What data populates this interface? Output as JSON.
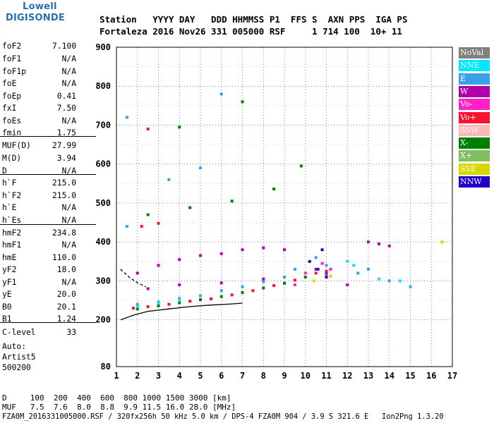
{
  "logo": {
    "line1": "Lowell",
    "line2": "DIGISONDE"
  },
  "header": {
    "row1": "Station   YYYY DAY   DDD HHMMSS P1  FFS S  AXN PPS  IGA PS",
    "row2": "Fortaleza 2016 Nov26 331 005000 RSF     1 714 100  10+ 11"
  },
  "params": [
    {
      "name": "foF2",
      "value": "7.100"
    },
    {
      "name": "foF1",
      "value": "N/A"
    },
    {
      "name": "foF1p",
      "value": "N/A"
    },
    {
      "name": "foE",
      "value": "N/A"
    },
    {
      "name": "foEp",
      "value": "0.41"
    },
    {
      "name": "fxI",
      "value": "7.50"
    },
    {
      "name": "foEs",
      "value": "N/A"
    },
    {
      "name": "fmin",
      "value": "1.75"
    },
    {
      "name": "MUF(D)",
      "value": "27.99"
    },
    {
      "name": "M(D)",
      "value": "3.94"
    },
    {
      "name": "D",
      "value": "N/A"
    },
    {
      "name": "h`F",
      "value": "215.0"
    },
    {
      "name": "h`F2",
      "value": "215.0"
    },
    {
      "name": "h`E",
      "value": "N/A"
    },
    {
      "name": "h`Es",
      "value": "N/A"
    },
    {
      "name": "hmF2",
      "value": "234.8"
    },
    {
      "name": "hmF1",
      "value": "N/A"
    },
    {
      "name": "hmE",
      "value": "110.0"
    },
    {
      "name": "yF2",
      "value": "18.0"
    },
    {
      "name": "yF1",
      "value": "N/A"
    },
    {
      "name": "yE",
      "value": "20.0"
    },
    {
      "name": "B0",
      "value": "20.1"
    },
    {
      "name": "B1",
      "value": "1.24"
    },
    {
      "name": "C-level",
      "value": "33"
    }
  ],
  "autoscale": {
    "line1": "Auto:",
    "line2": "Artist5",
    "line3": "500200"
  },
  "legend": [
    {
      "label": "NoVal",
      "bg": "#808080",
      "fg": "#ffffff"
    },
    {
      "label": "NNE",
      "bg": "#00e8ff",
      "fg": "#ffffff"
    },
    {
      "label": "E",
      "bg": "#3aa0e8",
      "fg": "#ffffff"
    },
    {
      "label": "W",
      "bg": "#b000a8",
      "fg": "#ffffff"
    },
    {
      "label": "Vo-",
      "bg": "#ff20c8",
      "fg": "#ffffff"
    },
    {
      "label": "Vo+",
      "bg": "#ff1030",
      "fg": "#ffffff"
    },
    {
      "label": "SSW",
      "bg": "#ffb8b8",
      "fg": "#ffffff"
    },
    {
      "label": "X-",
      "bg": "#008000",
      "fg": "#ffffff"
    },
    {
      "label": "X+",
      "bg": "#80c060",
      "fg": "#ffffff"
    },
    {
      "label": "SSE",
      "bg": "#d8d800",
      "fg": "#ffffff"
    },
    {
      "label": "NNW",
      "bg": "#2000c8",
      "fg": "#ffffff"
    }
  ],
  "footer": {
    "line1": "D     100  200  400  600  800 1000 1500 3000 [km]",
    "line2": "MUF   7.5  7.6  8.0  8.8  9.9 11.5 16.0 28.0 [MHz]",
    "line3": "FZA0M_2016331005000.RSF / 320fx256h 50 kHz 5.0 km / DPS-4 FZA0M 904 / 3.9 S 321.6 E   Ion2Png 1.3.20"
  },
  "chart_data": {
    "type": "scatter",
    "xlim": [
      1,
      17
    ],
    "ylim": [
      80,
      900
    ],
    "x_ticks": [
      1,
      2,
      3,
      4,
      5,
      6,
      7,
      8,
      9,
      10,
      11,
      12,
      13,
      14,
      15,
      16,
      17
    ],
    "y_ticks": [
      80,
      200,
      300,
      400,
      500,
      600,
      700,
      800,
      900
    ],
    "grid": true,
    "series": [
      {
        "name": "X-",
        "color": "#008000",
        "points": [
          [
            2.0,
            228
          ],
          [
            3.0,
            236
          ],
          [
            4.0,
            244
          ],
          [
            5.0,
            252
          ],
          [
            6.0,
            260
          ],
          [
            7.0,
            270
          ],
          [
            8.0,
            282
          ],
          [
            9.0,
            294
          ],
          [
            10.0,
            310
          ],
          [
            11.0,
            318
          ],
          [
            2.5,
            470
          ],
          [
            4.5,
            488
          ],
          [
            6.5,
            505
          ],
          [
            8.5,
            536
          ],
          [
            9.8,
            595
          ],
          [
            4.0,
            695
          ],
          [
            7.0,
            760
          ]
        ]
      },
      {
        "name": "Vo+",
        "color": "#ff1030",
        "points": [
          [
            1.8,
            230
          ],
          [
            2.5,
            234
          ],
          [
            3.5,
            240
          ],
          [
            4.5,
            248
          ],
          [
            5.5,
            254
          ],
          [
            6.5,
            264
          ],
          [
            7.5,
            275
          ],
          [
            8.5,
            288
          ],
          [
            9.5,
            302
          ],
          [
            10.5,
            320
          ],
          [
            11.0,
            325
          ],
          [
            2.2,
            440
          ],
          [
            3.0,
            448
          ],
          [
            2.5,
            690
          ]
        ]
      },
      {
        "name": "W",
        "color": "#b000a8",
        "points": [
          [
            2.0,
            320
          ],
          [
            3.0,
            340
          ],
          [
            4.0,
            355
          ],
          [
            5.0,
            365
          ],
          [
            6.0,
            370
          ],
          [
            7.0,
            380
          ],
          [
            8.0,
            385
          ],
          [
            9.0,
            380
          ],
          [
            2.5,
            280
          ],
          [
            4.0,
            290
          ],
          [
            6.0,
            295
          ],
          [
            8.0,
            305
          ],
          [
            10.5,
            330
          ],
          [
            11.0,
            320
          ],
          [
            12.0,
            290
          ],
          [
            13.0,
            400
          ],
          [
            13.5,
            395
          ],
          [
            14.0,
            390
          ]
        ]
      },
      {
        "name": "E",
        "color": "#3aa0e8",
        "points": [
          [
            2.0,
            240
          ],
          [
            3.0,
            246
          ],
          [
            4.0,
            255
          ],
          [
            5.0,
            262
          ],
          [
            6.0,
            275
          ],
          [
            7.0,
            285
          ],
          [
            8.0,
            298
          ],
          [
            9.0,
            310
          ],
          [
            9.5,
            330
          ],
          [
            10.5,
            360
          ],
          [
            11.0,
            340
          ],
          [
            12.5,
            320
          ],
          [
            13.0,
            330
          ],
          [
            14.0,
            300
          ],
          [
            15.0,
            285
          ],
          [
            1.5,
            440
          ],
          [
            1.5,
            720
          ],
          [
            3.5,
            560
          ],
          [
            5.0,
            590
          ],
          [
            6.0,
            780
          ]
        ]
      },
      {
        "name": "NNE",
        "color": "#00e8ff",
        "points": [
          [
            2.0,
            234
          ],
          [
            3.0,
            243
          ],
          [
            4.0,
            250
          ],
          [
            12.0,
            350
          ],
          [
            12.3,
            340
          ],
          [
            13.5,
            305
          ],
          [
            14.5,
            300
          ]
        ]
      },
      {
        "name": "NNW",
        "color": "#2000c8",
        "points": [
          [
            10.2,
            350
          ],
          [
            10.6,
            330
          ],
          [
            11.0,
            310
          ],
          [
            10.8,
            380
          ]
        ]
      },
      {
        "name": "Vo-",
        "color": "#ff20c8",
        "points": [
          [
            10.0,
            320
          ],
          [
            10.8,
            345
          ],
          [
            11.2,
            330
          ],
          [
            9.5,
            290
          ]
        ]
      },
      {
        "name": "SSE",
        "color": "#d8d800",
        "points": [
          [
            10.4,
            300
          ],
          [
            11.2,
            312
          ],
          [
            16.5,
            400
          ]
        ]
      }
    ],
    "lines": [
      {
        "name": "profile",
        "color": "#000000",
        "points": [
          [
            1.2,
            200
          ],
          [
            1.8,
            212
          ],
          [
            2.5,
            222
          ],
          [
            3.5,
            228
          ],
          [
            4.5,
            234
          ],
          [
            5.5,
            238
          ],
          [
            6.5,
            241
          ],
          [
            7.0,
            243
          ]
        ]
      },
      {
        "name": "dashed",
        "color": "#000000",
        "dashed": true,
        "points": [
          [
            1.2,
            330
          ],
          [
            1.6,
            310
          ],
          [
            2.0,
            295
          ],
          [
            2.4,
            285
          ]
        ]
      }
    ]
  }
}
